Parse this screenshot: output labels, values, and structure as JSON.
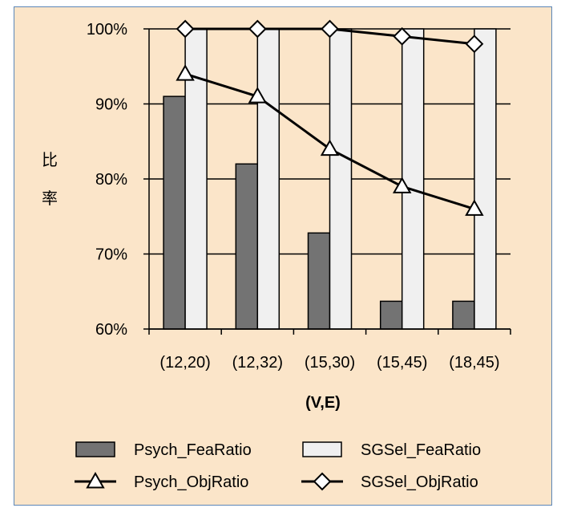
{
  "chart_data": {
    "type": "bar",
    "categories": [
      "(12,20)",
      "(12,32)",
      "(15,30)",
      "(15,45)",
      "(18,45)"
    ],
    "series": [
      {
        "name": "Psych_FeaRatio",
        "kind": "bar",
        "values": [
          91,
          82,
          72.8,
          63.7,
          63.7
        ],
        "color": "#737373"
      },
      {
        "name": "SGSel_FeaRatio",
        "kind": "bar",
        "values": [
          100,
          100,
          100,
          100,
          100
        ],
        "color": "#f0f0f0"
      },
      {
        "name": "Psych_ObjRatio",
        "kind": "line",
        "marker": "triangle",
        "values": [
          94,
          91,
          84,
          79,
          76
        ],
        "color": "#000000"
      },
      {
        "name": "SGSel_ObjRatio",
        "kind": "line",
        "marker": "diamond",
        "values": [
          100,
          100,
          100,
          99,
          98
        ],
        "color": "#000000"
      }
    ],
    "xlabel": "(V,E)",
    "ylabel": [
      "比",
      "率"
    ],
    "yticks": [
      "60%",
      "70%",
      "80%",
      "90%",
      "100%"
    ],
    "ylim": [
      60,
      100
    ],
    "legend_position": "bottom",
    "grid": true,
    "background": "#fbe5c9",
    "border_color": "#5b86b8"
  }
}
